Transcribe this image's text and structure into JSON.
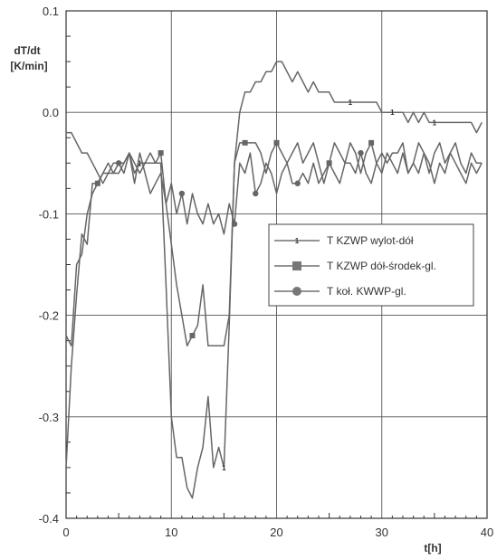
{
  "chart_data": {
    "type": "line",
    "xlabel": "t[h]",
    "ylabel_line1": "dT/dt",
    "ylabel_line2": "[K/min]",
    "xlim": [
      0,
      40
    ],
    "ylim": [
      -0.4,
      0.1
    ],
    "xticks": [
      0,
      10,
      20,
      30,
      40
    ],
    "yticks": [
      0.1,
      0.0,
      -0.1,
      -0.2,
      -0.3,
      -0.4
    ],
    "ytick_labels": [
      "0.1",
      "0.0",
      "-0.1",
      "-0.2",
      "-0.3",
      "-0.4"
    ],
    "grid": true,
    "legend_position": "center-right",
    "series": [
      {
        "name": "T KZWP wylot-dół",
        "marker_label": "1",
        "color": "#666666",
        "x": [
          0,
          0.5,
          1,
          1.5,
          2,
          2.5,
          3,
          3.5,
          4,
          4.5,
          5,
          5.5,
          6,
          6.5,
          7,
          7.5,
          8,
          8.5,
          9,
          9.5,
          10,
          10.5,
          11,
          11.5,
          12,
          12.5,
          13,
          13.5,
          14,
          14.5,
          15,
          15.5,
          16,
          16.5,
          17,
          17.5,
          18,
          18.5,
          19,
          19.5,
          20,
          20.5,
          21,
          21.5,
          22,
          22.5,
          23,
          23.5,
          24,
          24.5,
          25,
          25.5,
          26,
          26.5,
          27,
          27.5,
          28,
          28.5,
          29,
          29.5,
          30,
          30.5,
          31,
          31.5,
          32,
          32.5,
          33,
          33.5,
          34,
          34.5,
          35,
          35.5,
          36,
          36.5,
          37,
          37.5,
          38,
          38.5,
          39,
          39.5
        ],
        "y": [
          -0.35,
          -0.25,
          -0.18,
          -0.12,
          -0.13,
          -0.07,
          -0.07,
          -0.06,
          -0.05,
          -0.06,
          -0.05,
          -0.05,
          -0.04,
          -0.06,
          -0.05,
          -0.05,
          -0.04,
          -0.05,
          -0.05,
          -0.17,
          -0.3,
          -0.34,
          -0.34,
          -0.37,
          -0.38,
          -0.35,
          -0.33,
          -0.28,
          -0.35,
          -0.33,
          -0.35,
          -0.21,
          -0.05,
          0.0,
          0.02,
          0.02,
          0.03,
          0.03,
          0.04,
          0.04,
          0.05,
          0.05,
          0.04,
          0.03,
          0.04,
          0.03,
          0.02,
          0.03,
          0.02,
          0.02,
          0.02,
          0.01,
          0.01,
          0.01,
          0.01,
          0.01,
          0.01,
          0.01,
          0.01,
          0.01,
          0.0,
          0.0,
          0.0,
          0.0,
          0.0,
          -0.01,
          0.0,
          -0.01,
          0.0,
          -0.01,
          -0.01,
          -0.01,
          -0.01,
          -0.01,
          -0.01,
          -0.01,
          -0.01,
          -0.01,
          -0.02,
          -0.01
        ]
      },
      {
        "name": "T KZWP dół-środek-gl.",
        "marker_label": "2",
        "color": "#666666",
        "x": [
          0,
          0.5,
          1,
          1.5,
          2,
          2.5,
          3,
          3.5,
          4,
          4.5,
          5,
          5.5,
          6,
          6.5,
          7,
          7.5,
          8,
          8.5,
          9,
          9.5,
          10,
          10.5,
          11,
          11.5,
          12,
          12.5,
          13,
          13.5,
          14,
          14.5,
          15,
          15.5,
          16,
          16.5,
          17,
          17.5,
          18,
          18.5,
          19,
          19.5,
          20,
          20.5,
          21,
          21.5,
          22,
          22.5,
          23,
          23.5,
          24,
          24.5,
          25,
          25.5,
          26,
          26.5,
          27,
          27.5,
          28,
          28.5,
          29,
          29.5,
          30,
          30.5,
          31,
          31.5,
          32,
          32.5,
          33,
          33.5,
          34,
          34.5,
          35,
          35.5,
          36,
          36.5,
          37,
          37.5,
          38,
          38.5,
          39,
          39.5
        ],
        "y": [
          -0.22,
          -0.23,
          -0.15,
          -0.14,
          -0.1,
          -0.08,
          -0.07,
          -0.06,
          -0.06,
          -0.06,
          -0.06,
          -0.05,
          -0.04,
          -0.05,
          -0.06,
          -0.05,
          -0.05,
          -0.05,
          -0.04,
          -0.09,
          -0.13,
          -0.17,
          -0.2,
          -0.23,
          -0.22,
          -0.21,
          -0.17,
          -0.23,
          -0.23,
          -0.23,
          -0.23,
          -0.2,
          -0.05,
          -0.03,
          -0.03,
          -0.03,
          -0.03,
          -0.04,
          -0.06,
          -0.04,
          -0.03,
          -0.04,
          -0.05,
          -0.04,
          -0.03,
          -0.05,
          -0.04,
          -0.03,
          -0.05,
          -0.07,
          -0.05,
          -0.03,
          -0.04,
          -0.05,
          -0.03,
          -0.04,
          -0.06,
          -0.04,
          -0.03,
          -0.05,
          -0.04,
          -0.05,
          -0.04,
          -0.04,
          -0.03,
          -0.06,
          -0.05,
          -0.03,
          -0.04,
          -0.06,
          -0.04,
          -0.03,
          -0.05,
          -0.04,
          -0.03,
          -0.05,
          -0.06,
          -0.04,
          -0.05,
          -0.05
        ]
      },
      {
        "name": "T koł. KWWP-gl.",
        "marker_label": "3",
        "color": "#666666",
        "x": [
          0,
          0.5,
          1,
          1.5,
          2,
          2.5,
          3,
          3.5,
          4,
          4.5,
          5,
          5.5,
          6,
          6.5,
          7,
          7.5,
          8,
          8.5,
          9,
          9.5,
          10,
          10.5,
          11,
          11.5,
          12,
          12.5,
          13,
          13.5,
          14,
          14.5,
          15,
          15.5,
          16,
          16.5,
          17,
          17.5,
          18,
          18.5,
          19,
          19.5,
          20,
          20.5,
          21,
          21.5,
          22,
          22.5,
          23,
          23.5,
          24,
          24.5,
          25,
          25.5,
          26,
          26.5,
          27,
          27.5,
          28,
          28.5,
          29,
          29.5,
          30,
          30.5,
          31,
          31.5,
          32,
          32.5,
          33,
          33.5,
          34,
          34.5,
          35,
          35.5,
          36,
          36.5,
          37,
          37.5,
          38,
          38.5,
          39,
          39.5
        ],
        "y": [
          -0.02,
          -0.02,
          -0.03,
          -0.04,
          -0.04,
          -0.05,
          -0.06,
          -0.07,
          -0.06,
          -0.05,
          -0.05,
          -0.06,
          -0.04,
          -0.07,
          -0.04,
          -0.06,
          -0.08,
          -0.07,
          -0.06,
          -0.09,
          -0.07,
          -0.1,
          -0.08,
          -0.11,
          -0.08,
          -0.1,
          -0.11,
          -0.09,
          -0.11,
          -0.1,
          -0.12,
          -0.09,
          -0.11,
          -0.05,
          -0.06,
          -0.04,
          -0.08,
          -0.07,
          -0.05,
          -0.06,
          -0.08,
          -0.06,
          -0.05,
          -0.07,
          -0.07,
          -0.06,
          -0.07,
          -0.05,
          -0.07,
          -0.06,
          -0.05,
          -0.06,
          -0.07,
          -0.05,
          -0.05,
          -0.06,
          -0.04,
          -0.06,
          -0.07,
          -0.05,
          -0.06,
          -0.04,
          -0.05,
          -0.06,
          -0.04,
          -0.06,
          -0.05,
          -0.06,
          -0.04,
          -0.05,
          -0.07,
          -0.05,
          -0.06,
          -0.04,
          -0.05,
          -0.06,
          -0.07,
          -0.05,
          -0.06,
          -0.05
        ]
      }
    ]
  }
}
